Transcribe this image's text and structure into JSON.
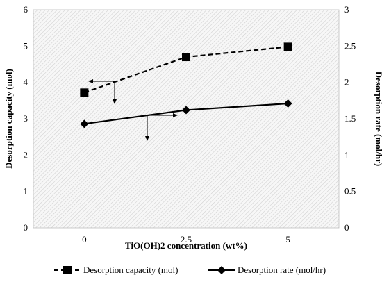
{
  "chart_data": {
    "type": "line",
    "categories": [
      "0",
      "2.5",
      "5"
    ],
    "x": [
      0,
      2.5,
      5
    ],
    "xlabel": "TiO(OH)2 concentration (wt%)",
    "ylabel": "Desorption capacity (mol)",
    "y2label": "Desorption rate (mol/hr)",
    "ylim": [
      0,
      6
    ],
    "y2lim": [
      0,
      3
    ],
    "yticks": [
      "0",
      "1",
      "2",
      "3",
      "4",
      "5",
      "6"
    ],
    "y2ticks": [
      "0",
      "0.5",
      "1",
      "1.5",
      "2",
      "2.5",
      "3"
    ],
    "grid": false,
    "legend_position": "bottom",
    "series": [
      {
        "name": "Desorption capacity (mol)",
        "axis": "left",
        "values": [
          3.72,
          4.7,
          4.98
        ],
        "marker": "square",
        "line_style": "dashed",
        "color": "#000000"
      },
      {
        "name": "Desorption rate (mol/hr)",
        "axis": "right",
        "values": [
          1.43,
          1.62,
          1.71
        ],
        "marker": "diamond",
        "line_style": "solid",
        "color": "#000000"
      }
    ]
  }
}
